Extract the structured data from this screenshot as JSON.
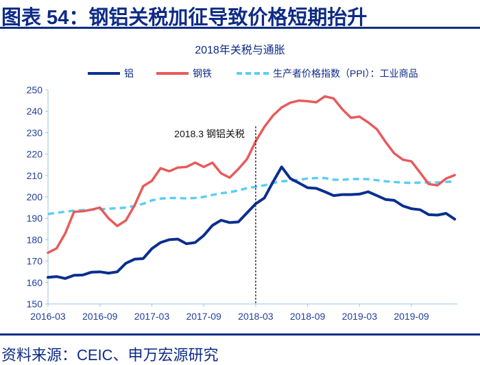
{
  "header": {
    "title": "图表 54：钢铝关税加征导致价格短期抬升"
  },
  "footer": {
    "source": "资料来源：CEIC、申万宏源研究"
  },
  "chart_data": {
    "type": "line",
    "title": "2018年关税与通胀",
    "xlabel": "",
    "ylabel": "",
    "ylim": [
      150,
      250
    ],
    "yticks": [
      150,
      160,
      170,
      180,
      190,
      200,
      210,
      220,
      230,
      240,
      250
    ],
    "xtick_labels": [
      "2016-03",
      "2016-09",
      "2017-03",
      "2017-09",
      "2018-03",
      "2018-09",
      "2019-03",
      "2019-09"
    ],
    "x_start": "2016-03",
    "x_end": "2020-02",
    "grid": false,
    "legend_placement": "top",
    "annotation": {
      "label": "2018.3 钢铝关税",
      "x": "2018-03",
      "style": "dashed vertical line"
    },
    "series": [
      {
        "name": "铝",
        "color": "#0b2f8f",
        "style": "solid",
        "values": [
          162.4,
          162.8,
          161.9,
          163.4,
          163.5,
          164.8,
          165,
          164.4,
          165,
          169,
          170.9,
          171.2,
          175.8,
          178.7,
          180,
          180.3,
          178.1,
          178.7,
          182,
          186.7,
          189.1,
          188,
          188.3,
          192.6,
          196.8,
          199.5,
          207,
          214,
          208.6,
          206.5,
          204.3,
          204,
          202.4,
          200.6,
          201.1,
          201.1,
          201.3,
          202.4,
          200.6,
          198.8,
          198.4,
          195.8,
          194.5,
          194,
          191.7,
          191.5,
          192.3,
          189.6
        ]
      },
      {
        "name": "钢铁",
        "color": "#e85a5a",
        "style": "solid",
        "values": [
          173.9,
          176,
          183,
          193,
          193.3,
          194,
          195,
          190,
          186.4,
          189,
          196,
          205,
          207.5,
          213.4,
          212,
          213.7,
          214,
          216,
          214,
          216,
          211,
          209,
          213,
          217.7,
          226,
          232.7,
          238,
          241.8,
          244,
          245,
          244.7,
          244.2,
          247,
          246,
          241,
          237,
          237.5,
          234.8,
          231.6,
          225.7,
          220.4,
          217.4,
          216.6,
          211.3,
          206,
          205.4,
          208.6,
          210.2
        ]
      },
      {
        "name": "生产者价格指数（PPI）：工业商品",
        "color": "#5bcdf5",
        "style": "dashed",
        "values": [
          192,
          192.6,
          193.1,
          193.6,
          193.8,
          194,
          194.2,
          194.5,
          194.7,
          195,
          195.8,
          196.8,
          198.4,
          199.2,
          199.5,
          199.5,
          199.3,
          199.5,
          200,
          200.9,
          201.7,
          202.2,
          203,
          204.1,
          204.7,
          205.4,
          206.5,
          207.3,
          207.5,
          208,
          208.6,
          208.8,
          208.8,
          208,
          208,
          208.3,
          208.4,
          208.3,
          207.8,
          207.3,
          207,
          206.7,
          206.5,
          206.7,
          206.8,
          206.7,
          207,
          207.3
        ]
      }
    ]
  }
}
